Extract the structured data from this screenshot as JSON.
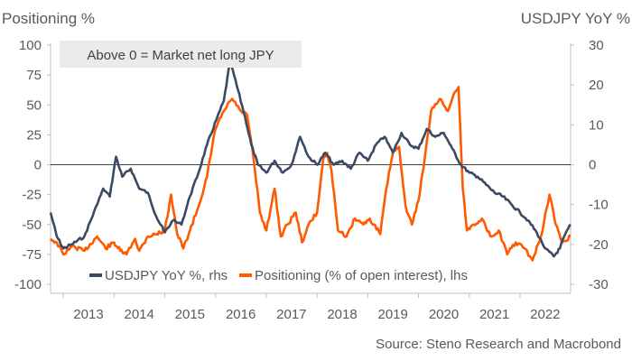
{
  "chart_data": {
    "type": "line",
    "left_axis_title": "Positioning %",
    "right_axis_title": "USDJPY YoY %",
    "annotation": "Above 0 = Market net long JPY",
    "source": "Source: Steno Research and Macrobond",
    "x_range": [
      "2012-10-01",
      "2022-12-31"
    ],
    "x_tick_labels": [
      "2013",
      "2014",
      "2015",
      "2016",
      "2017",
      "2018",
      "2019",
      "2020",
      "2021",
      "2022"
    ],
    "left_ylim": [
      -100,
      100
    ],
    "left_ticks": [
      "100",
      "75",
      "50",
      "25",
      "0",
      "-25",
      "-50",
      "-75",
      "-100"
    ],
    "right_ylim": [
      -30,
      30
    ],
    "right_ticks": [
      "30",
      "20",
      "10",
      "0",
      "-10",
      "-20",
      "-30"
    ],
    "grid": false,
    "zero_line": true,
    "legend_position": "bottom-left",
    "colors": {
      "usdjpy": "#3b4a63",
      "positioning": "#ff5a00",
      "text": "#595959",
      "annotation_bg": "#ebebeb"
    },
    "series": [
      {
        "name": "USDJPY YoY %, rhs",
        "axis": "right",
        "points": [
          [
            "2012-10-01",
            -12
          ],
          [
            "2012-11-15",
            -18
          ],
          [
            "2013-01-01",
            -21
          ],
          [
            "2013-03-01",
            -20
          ],
          [
            "2013-06-01",
            -18
          ],
          [
            "2013-09-01",
            -10
          ],
          [
            "2013-10-15",
            -6
          ],
          [
            "2013-12-01",
            -8
          ],
          [
            "2014-01-15",
            2
          ],
          [
            "2014-03-01",
            -3
          ],
          [
            "2014-05-01",
            -1
          ],
          [
            "2014-07-01",
            -6
          ],
          [
            "2014-09-01",
            -7
          ],
          [
            "2014-11-01",
            -13
          ],
          [
            "2015-01-01",
            -17
          ],
          [
            "2015-03-01",
            -14
          ],
          [
            "2015-05-01",
            -15
          ],
          [
            "2015-07-01",
            -8
          ],
          [
            "2015-09-01",
            -2
          ],
          [
            "2015-11-01",
            5
          ],
          [
            "2016-01-15",
            12
          ],
          [
            "2016-03-01",
            16
          ],
          [
            "2016-04-15",
            26
          ],
          [
            "2016-06-01",
            20
          ],
          [
            "2016-08-01",
            12
          ],
          [
            "2016-09-15",
            5
          ],
          [
            "2016-11-01",
            0
          ],
          [
            "2017-01-01",
            -2
          ],
          [
            "2017-03-01",
            1
          ],
          [
            "2017-05-01",
            -2
          ],
          [
            "2017-07-01",
            0
          ],
          [
            "2017-09-01",
            7
          ],
          [
            "2017-11-01",
            2
          ],
          [
            "2018-01-01",
            0
          ],
          [
            "2018-03-01",
            3
          ],
          [
            "2018-05-01",
            0
          ],
          [
            "2018-07-01",
            1
          ],
          [
            "2018-09-01",
            -1
          ],
          [
            "2018-11-01",
            3
          ],
          [
            "2019-01-01",
            1
          ],
          [
            "2019-03-01",
            5
          ],
          [
            "2019-05-01",
            7
          ],
          [
            "2019-07-01",
            3
          ],
          [
            "2019-09-01",
            8
          ],
          [
            "2019-11-01",
            5
          ],
          [
            "2020-01-01",
            4
          ],
          [
            "2020-03-01",
            9
          ],
          [
            "2020-05-01",
            7
          ],
          [
            "2020-07-01",
            8
          ],
          [
            "2020-09-01",
            4
          ],
          [
            "2020-11-01",
            0
          ],
          [
            "2021-01-01",
            -2
          ],
          [
            "2021-03-01",
            -3
          ],
          [
            "2021-05-01",
            -5
          ],
          [
            "2021-07-01",
            -7
          ],
          [
            "2021-09-01",
            -8
          ],
          [
            "2021-11-01",
            -10
          ],
          [
            "2022-01-01",
            -12
          ],
          [
            "2022-03-01",
            -14
          ],
          [
            "2022-05-01",
            -17
          ],
          [
            "2022-07-01",
            -21
          ],
          [
            "2022-09-01",
            -23
          ],
          [
            "2022-10-15",
            -21
          ],
          [
            "2022-11-15",
            -18
          ],
          [
            "2022-12-31",
            -15
          ]
        ]
      },
      {
        "name": "Positioning (% of open interest), lhs",
        "axis": "left",
        "points": [
          [
            "2012-10-01",
            -62
          ],
          [
            "2012-11-15",
            -65
          ],
          [
            "2013-01-01",
            -75
          ],
          [
            "2013-03-01",
            -68
          ],
          [
            "2013-06-01",
            -72
          ],
          [
            "2013-09-01",
            -60
          ],
          [
            "2013-11-01",
            -70
          ],
          [
            "2014-01-01",
            -65
          ],
          [
            "2014-02-15",
            -72
          ],
          [
            "2014-04-01",
            -75
          ],
          [
            "2014-06-01",
            -62
          ],
          [
            "2014-07-01",
            -72
          ],
          [
            "2014-09-01",
            -60
          ],
          [
            "2014-11-01",
            -58
          ],
          [
            "2015-01-01",
            -55
          ],
          [
            "2015-02-15",
            -25
          ],
          [
            "2015-04-01",
            -58
          ],
          [
            "2015-05-15",
            -70
          ],
          [
            "2015-07-01",
            -55
          ],
          [
            "2015-09-01",
            -35
          ],
          [
            "2015-11-01",
            -10
          ],
          [
            "2016-01-01",
            30
          ],
          [
            "2016-03-01",
            45
          ],
          [
            "2016-05-01",
            55
          ],
          [
            "2016-07-01",
            45
          ],
          [
            "2016-08-15",
            42
          ],
          [
            "2016-10-01",
            5
          ],
          [
            "2016-11-15",
            -40
          ],
          [
            "2017-01-01",
            -55
          ],
          [
            "2017-03-01",
            -20
          ],
          [
            "2017-04-15",
            -60
          ],
          [
            "2017-06-01",
            -50
          ],
          [
            "2017-08-01",
            -40
          ],
          [
            "2017-09-15",
            -65
          ],
          [
            "2017-11-01",
            -50
          ],
          [
            "2018-01-01",
            -40
          ],
          [
            "2018-02-15",
            5
          ],
          [
            "2018-03-15",
            10
          ],
          [
            "2018-04-15",
            -5
          ],
          [
            "2018-06-01",
            -55
          ],
          [
            "2018-08-01",
            -60
          ],
          [
            "2018-10-01",
            -45
          ],
          [
            "2018-12-01",
            -50
          ],
          [
            "2019-01-15",
            -45
          ],
          [
            "2019-02-15",
            -50
          ],
          [
            "2019-04-01",
            -58
          ],
          [
            "2019-05-15",
            -20
          ],
          [
            "2019-07-01",
            10
          ],
          [
            "2019-08-15",
            15
          ],
          [
            "2019-10-01",
            -35
          ],
          [
            "2019-11-15",
            -50
          ],
          [
            "2020-01-01",
            -30
          ],
          [
            "2020-02-15",
            5
          ],
          [
            "2020-04-01",
            45
          ],
          [
            "2020-06-01",
            55
          ],
          [
            "2020-08-01",
            45
          ],
          [
            "2020-09-15",
            60
          ],
          [
            "2020-10-15",
            65
          ],
          [
            "2020-11-15",
            -20
          ],
          [
            "2020-12-15",
            -55
          ],
          [
            "2021-02-01",
            -50
          ],
          [
            "2021-04-01",
            -45
          ],
          [
            "2021-06-01",
            -60
          ],
          [
            "2021-08-01",
            -55
          ],
          [
            "2021-10-01",
            -75
          ],
          [
            "2021-12-01",
            -65
          ],
          [
            "2022-02-01",
            -70
          ],
          [
            "2022-04-01",
            -80
          ],
          [
            "2022-06-01",
            -60
          ],
          [
            "2022-08-01",
            -25
          ],
          [
            "2022-09-15",
            -50
          ],
          [
            "2022-11-01",
            -65
          ],
          [
            "2022-12-31",
            -60
          ]
        ]
      }
    ]
  }
}
